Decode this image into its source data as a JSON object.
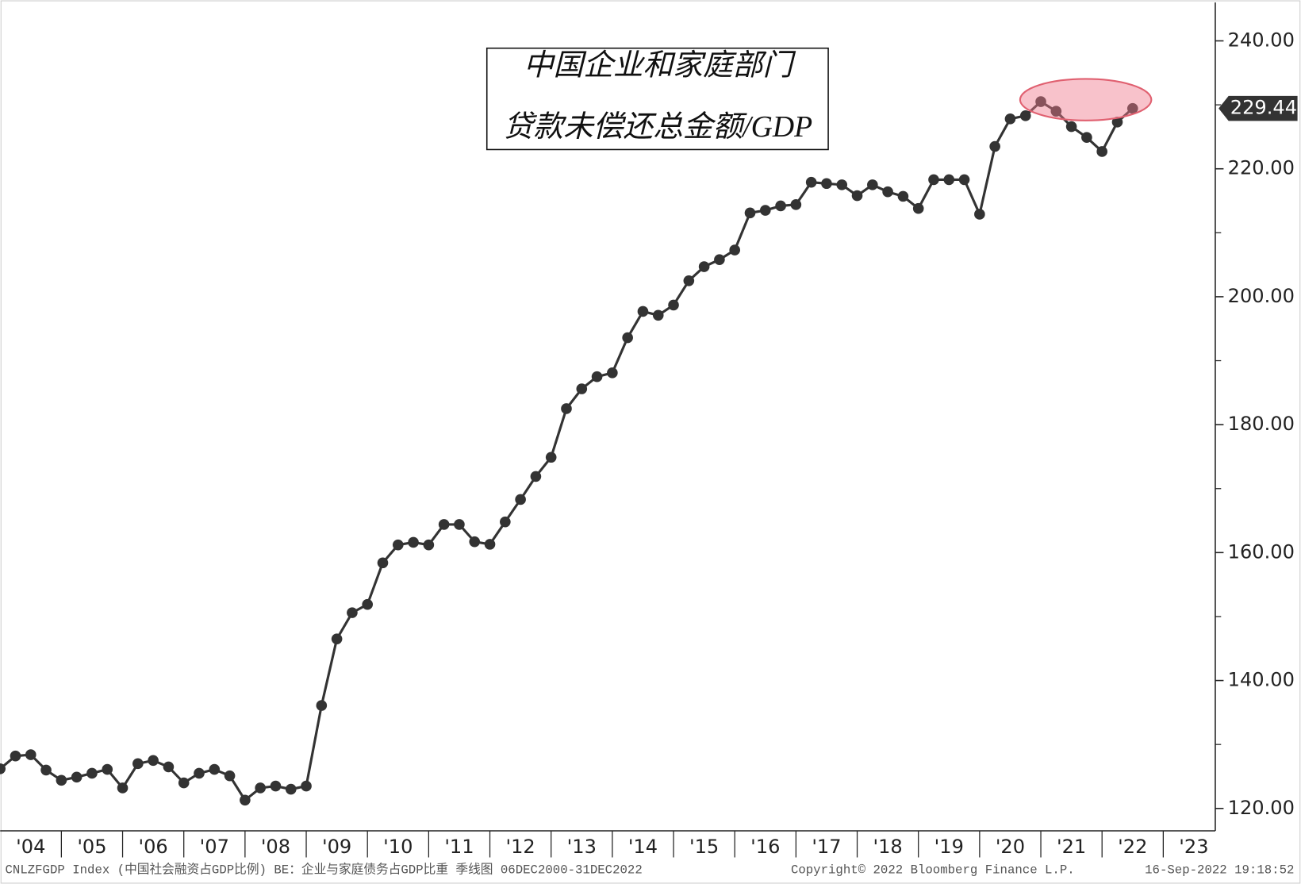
{
  "chart_data": {
    "type": "line",
    "title": "中国企业和家庭部门",
    "subtitle": "贷款未偿还总金额/GDP",
    "color": "#333333",
    "x": [
      2004,
      2004.25,
      2004.5,
      2004.75,
      2005,
      2005.25,
      2005.5,
      2005.75,
      2006,
      2006.25,
      2006.5,
      2006.75,
      2007,
      2007.25,
      2007.5,
      2007.75,
      2008,
      2008.25,
      2008.5,
      2008.75,
      2009,
      2009.25,
      2009.5,
      2009.75,
      2010,
      2010.25,
      2010.5,
      2010.75,
      2011,
      2011.25,
      2011.5,
      2011.75,
      2012,
      2012.25,
      2012.5,
      2012.75,
      2013,
      2013.25,
      2013.5,
      2013.75,
      2014,
      2014.25,
      2014.5,
      2014.75,
      2015,
      2015.25,
      2015.5,
      2015.75,
      2016,
      2016.25,
      2016.5,
      2016.75,
      2017,
      2017.25,
      2017.5,
      2017.75,
      2018,
      2018.25,
      2018.5,
      2018.75,
      2019,
      2019.25,
      2019.5,
      2019.75,
      2020,
      2020.25,
      2020.5,
      2020.75,
      2021,
      2021.25,
      2021.5,
      2021.75,
      2022,
      2022.25,
      2022.5
    ],
    "values": [
      126.2,
      128.2,
      128.4,
      126.0,
      124.4,
      124.9,
      125.5,
      126.1,
      123.2,
      127.0,
      127.5,
      126.5,
      124.0,
      125.5,
      126.1,
      125.1,
      121.3,
      123.2,
      123.5,
      123.0,
      123.5,
      136.1,
      146.5,
      150.6,
      151.9,
      158.4,
      161.2,
      161.6,
      161.2,
      164.4,
      164.4,
      161.7,
      161.3,
      164.8,
      168.3,
      171.9,
      174.9,
      182.5,
      185.6,
      187.5,
      188.1,
      193.6,
      197.7,
      197.1,
      198.7,
      202.5,
      204.7,
      205.8,
      207.3,
      213.1,
      213.5,
      214.2,
      214.4,
      217.9,
      217.7,
      217.5,
      215.8,
      217.5,
      216.4,
      215.7,
      213.8,
      218.3,
      218.3,
      218.3,
      212.9,
      223.5,
      227.8,
      228.3,
      230.5,
      229.0,
      226.6,
      224.9,
      222.7,
      227.3,
      229.44
    ],
    "xlim": [
      2004,
      2023.85
    ],
    "xticks": [
      {
        "value": 2004.5,
        "label": "'04"
      },
      {
        "value": 2005.5,
        "label": "'05"
      },
      {
        "value": 2006.5,
        "label": "'06"
      },
      {
        "value": 2007.5,
        "label": "'07"
      },
      {
        "value": 2008.5,
        "label": "'08"
      },
      {
        "value": 2009.5,
        "label": "'09"
      },
      {
        "value": 2010.5,
        "label": "'10"
      },
      {
        "value": 2011.5,
        "label": "'11"
      },
      {
        "value": 2012.5,
        "label": "'12"
      },
      {
        "value": 2013.5,
        "label": "'13"
      },
      {
        "value": 2014.5,
        "label": "'14"
      },
      {
        "value": 2015.5,
        "label": "'15"
      },
      {
        "value": 2016.5,
        "label": "'16"
      },
      {
        "value": 2017.5,
        "label": "'17"
      },
      {
        "value": 2018.5,
        "label": "'18"
      },
      {
        "value": 2019.5,
        "label": "'19"
      },
      {
        "value": 2020.5,
        "label": "'20"
      },
      {
        "value": 2021.5,
        "label": "'21"
      },
      {
        "value": 2022.5,
        "label": "'22"
      },
      {
        "value": 2023.5,
        "label": "'23"
      }
    ],
    "ylim": [
      116.5,
      246
    ],
    "yticks": [
      {
        "value": 120,
        "label": "120.00"
      },
      {
        "value": 140,
        "label": "140.00"
      },
      {
        "value": 160,
        "label": "160.00"
      },
      {
        "value": 180,
        "label": "180.00"
      },
      {
        "value": 200,
        "label": "200.00"
      },
      {
        "value": 220,
        "label": "220.00"
      },
      {
        "value": 240,
        "label": "240.00"
      }
    ],
    "footer_source": "CNLZFGDP Index (中国社会融资占GDP比例) BE：企业与家庭债务占GDP比重  季线图 06DEC2000-31DEC2022",
    "footer_copyright": "Copyright© 2022 Bloomberg Finance L.P.",
    "footer_date": "16-Sep-2022 19:18:52"
  }
}
